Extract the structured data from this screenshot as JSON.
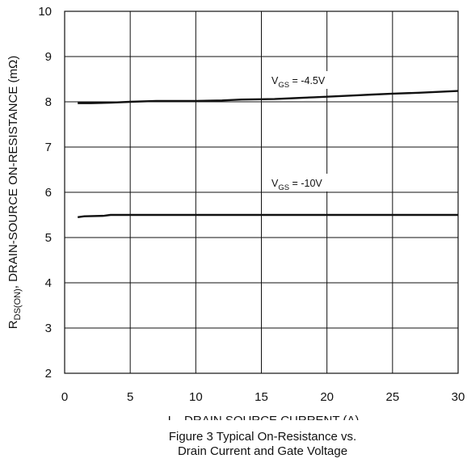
{
  "chart_data": {
    "type": "line",
    "xlabel": {
      "main": "I",
      "sub": "D",
      "rest": ", DRAIN SOURCE CURRENT (A)"
    },
    "ylabel": {
      "main": "R",
      "sub": "DS(ON)",
      "rest": ", DRAIN-SOURCE ON-RESISTANCE (mΩ)"
    },
    "caption": [
      "Figure 3 Typical On-Resistance vs.",
      "Drain Current and Gate Voltage"
    ],
    "xlim": [
      0,
      30
    ],
    "ylim": [
      2,
      10
    ],
    "xticks": [
      0,
      5,
      10,
      15,
      20,
      25,
      30
    ],
    "yticks": [
      2,
      3,
      4,
      5,
      6,
      7,
      8,
      9,
      10
    ],
    "grid": true,
    "series": [
      {
        "name": "V_GS = -4.5V",
        "label_parts": {
          "main": "V",
          "sub": "GS",
          "rest": " = -4.5V"
        },
        "x": [
          1,
          2,
          3.5,
          5,
          7,
          10,
          12,
          13.5,
          16,
          17.5,
          19,
          20.5,
          22,
          23.5,
          25,
          27,
          28.5,
          30
        ],
        "y": [
          7.97,
          7.97,
          7.98,
          8.0,
          8.02,
          8.02,
          8.03,
          8.05,
          8.06,
          8.08,
          8.1,
          8.12,
          8.14,
          8.16,
          8.18,
          8.2,
          8.22,
          8.24
        ]
      },
      {
        "name": "V_GS = -10V",
        "label_parts": {
          "main": "V",
          "sub": "GS",
          "rest": " = -10V"
        },
        "x": [
          1,
          1.5,
          3,
          3.5,
          5,
          10,
          15,
          20,
          25,
          30
        ],
        "y": [
          5.45,
          5.47,
          5.48,
          5.5,
          5.5,
          5.5,
          5.5,
          5.5,
          5.5,
          5.5
        ]
      }
    ]
  }
}
